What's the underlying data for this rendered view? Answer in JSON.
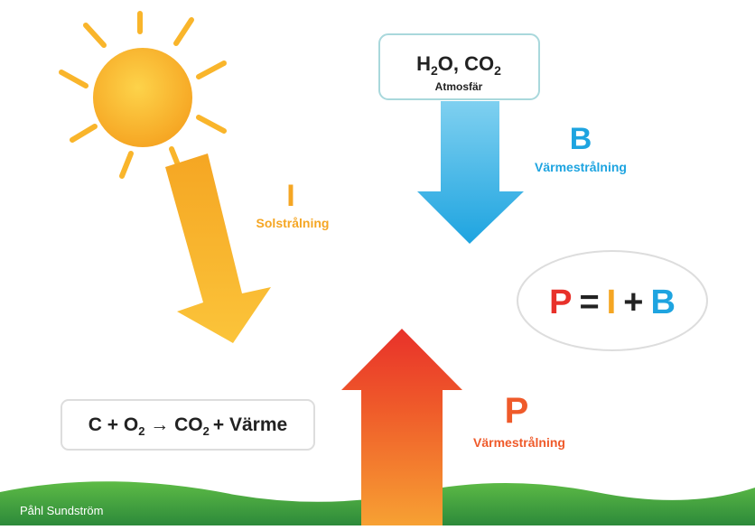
{
  "atmosphere": {
    "formula": [
      "H",
      "2",
      "O, CO",
      "2"
    ],
    "label": "Atmosfär"
  },
  "solar": {
    "symbol": "I",
    "label": "Solstrålning"
  },
  "back_radiation": {
    "symbol": "B",
    "label": "Värmestrålning"
  },
  "emitted": {
    "symbol": "P",
    "label": "Värmestrålning"
  },
  "equation": [
    "P",
    "=",
    "I",
    "+",
    "B"
  ],
  "reaction": [
    "C + O",
    "2",
    " → CO",
    "2",
    "+ Värme"
  ],
  "credit": "Påhl Sundström"
}
